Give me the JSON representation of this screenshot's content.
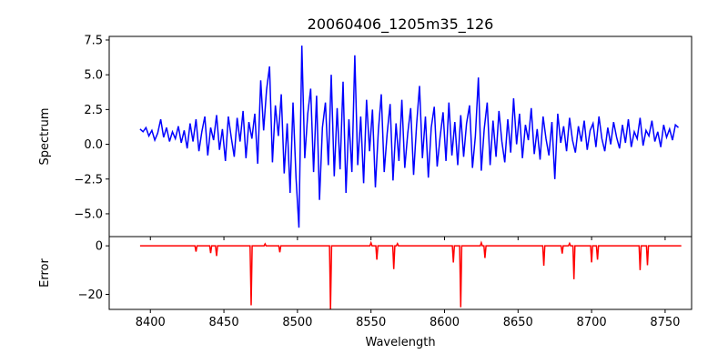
{
  "chart_data": [
    {
      "type": "line",
      "title": "20060406_1205m35_126",
      "xlabel": "",
      "ylabel": "Spectrum",
      "xlim": [
        8372,
        8768
      ],
      "ylim": [
        -6.64,
        7.76
      ],
      "xticks": [
        8400,
        8450,
        8500,
        8550,
        8600,
        8650,
        8700,
        8750
      ],
      "yticks": [
        -5.0,
        -2.5,
        0.0,
        2.5,
        5.0,
        7.5
      ],
      "ytick_labels": [
        "−5.0",
        "−2.5",
        "0.0",
        "2.5",
        "5.0",
        "7.5"
      ],
      "color": "#0000ff",
      "series": [
        {
          "name": "Spectrum",
          "x_start": 8393,
          "x_step": 2,
          "values": [
            1.1,
            0.9,
            1.2,
            0.6,
            1.0,
            0.3,
            0.8,
            1.8,
            0.5,
            1.2,
            0.2,
            0.9,
            0.4,
            1.3,
            0.1,
            1.0,
            -0.3,
            1.5,
            0.2,
            1.8,
            -0.5,
            0.9,
            2.0,
            -0.8,
            1.2,
            0.3,
            2.1,
            -0.4,
            1.1,
            -1.2,
            2.0,
            0.5,
            -0.9,
            1.9,
            0.2,
            2.4,
            -1.0,
            1.6,
            0.4,
            2.2,
            -1.4,
            4.6,
            1.0,
            3.9,
            5.6,
            -1.3,
            2.8,
            0.6,
            3.6,
            -2.1,
            1.5,
            -3.5,
            3.0,
            -2.4,
            -6.0,
            7.1,
            -1.0,
            2.2,
            4.0,
            -2.0,
            3.5,
            -4.0,
            1.2,
            3.0,
            -1.5,
            5.0,
            -2.3,
            2.6,
            -1.8,
            4.5,
            -3.5,
            1.8,
            -2.0,
            6.4,
            -1.5,
            2.0,
            -2.8,
            3.2,
            -0.5,
            2.5,
            -3.1,
            1.0,
            3.6,
            -2.0,
            0.8,
            2.9,
            -2.6,
            1.5,
            -1.2,
            3.2,
            -1.7,
            0.8,
            2.6,
            -2.2,
            1.4,
            4.2,
            -1.0,
            2.0,
            -2.4,
            1.2,
            2.7,
            -1.6,
            0.5,
            2.3,
            -1.2,
            3.0,
            -0.8,
            1.6,
            -1.5,
            2.1,
            -0.9,
            1.5,
            2.8,
            -1.7,
            0.6,
            4.8,
            -1.9,
            1.1,
            3.0,
            -1.5,
            1.7,
            -0.9,
            2.4,
            0.2,
            -1.3,
            1.8,
            -0.6,
            3.3,
            0.0,
            2.2,
            -1.0,
            1.4,
            0.3,
            2.6,
            -0.7,
            1.1,
            -1.1,
            2.0,
            0.4,
            -0.8,
            1.6,
            -2.5,
            2.2,
            0.1,
            1.3,
            -0.5,
            1.9,
            0.3,
            -0.6,
            1.3,
            0.2,
            1.7,
            -0.4,
            1.0,
            1.5,
            -0.2,
            2.0,
            0.4,
            -0.5,
            1.2,
            0.0,
            1.6,
            0.5,
            -0.3,
            1.4,
            0.1,
            1.8,
            -0.2,
            0.9,
            0.4,
            1.9,
            -0.1,
            1.0,
            0.6,
            1.7,
            0.2,
            0.9,
            -0.2,
            1.4,
            0.5,
            1.1,
            0.3,
            1.4,
            1.2
          ]
        }
      ]
    },
    {
      "type": "line",
      "xlabel": "Wavelength",
      "ylabel": "Error",
      "xlim": [
        8372,
        8768
      ],
      "ylim": [
        -26.2,
        3.8
      ],
      "xticks": [
        8400,
        8450,
        8500,
        8550,
        8600,
        8650,
        8700,
        8750
      ],
      "xtick_labels": [
        "8400",
        "8450",
        "8500",
        "8550",
        "8600",
        "8650",
        "8700",
        "8750"
      ],
      "yticks": [
        0,
        -20
      ],
      "ytick_labels": [
        "0",
        "−20"
      ],
      "color": "#ff0000",
      "series": [
        {
          "name": "Error",
          "x_range": [
            8393,
            8761
          ],
          "baseline": 0,
          "dips": [
            [
              8431,
              -2.4
            ],
            [
              8441,
              -3.0
            ],
            [
              8445,
              -4.2
            ],
            [
              8468.5,
              -24.5
            ],
            [
              8488,
              -2.7
            ],
            [
              8522.5,
              -26.0
            ],
            [
              8554,
              -5.7
            ],
            [
              8565.5,
              -9.6
            ],
            [
              8606,
              -6.9
            ],
            [
              8611,
              -25.3
            ],
            [
              8627.5,
              -5.0
            ],
            [
              8667.5,
              -8.2
            ],
            [
              8680,
              -3.2
            ],
            [
              8688,
              -13.8
            ],
            [
              8700,
              -6.8
            ],
            [
              8704,
              -5.7
            ],
            [
              8733,
              -10.0
            ],
            [
              8738,
              -8.0
            ]
          ],
          "bumps": [
            [
              8478,
              0.8
            ],
            [
              8550,
              1.2
            ],
            [
              8568,
              0.9
            ],
            [
              8625,
              1.3
            ],
            [
              8685,
              1.0
            ]
          ]
        }
      ]
    }
  ]
}
